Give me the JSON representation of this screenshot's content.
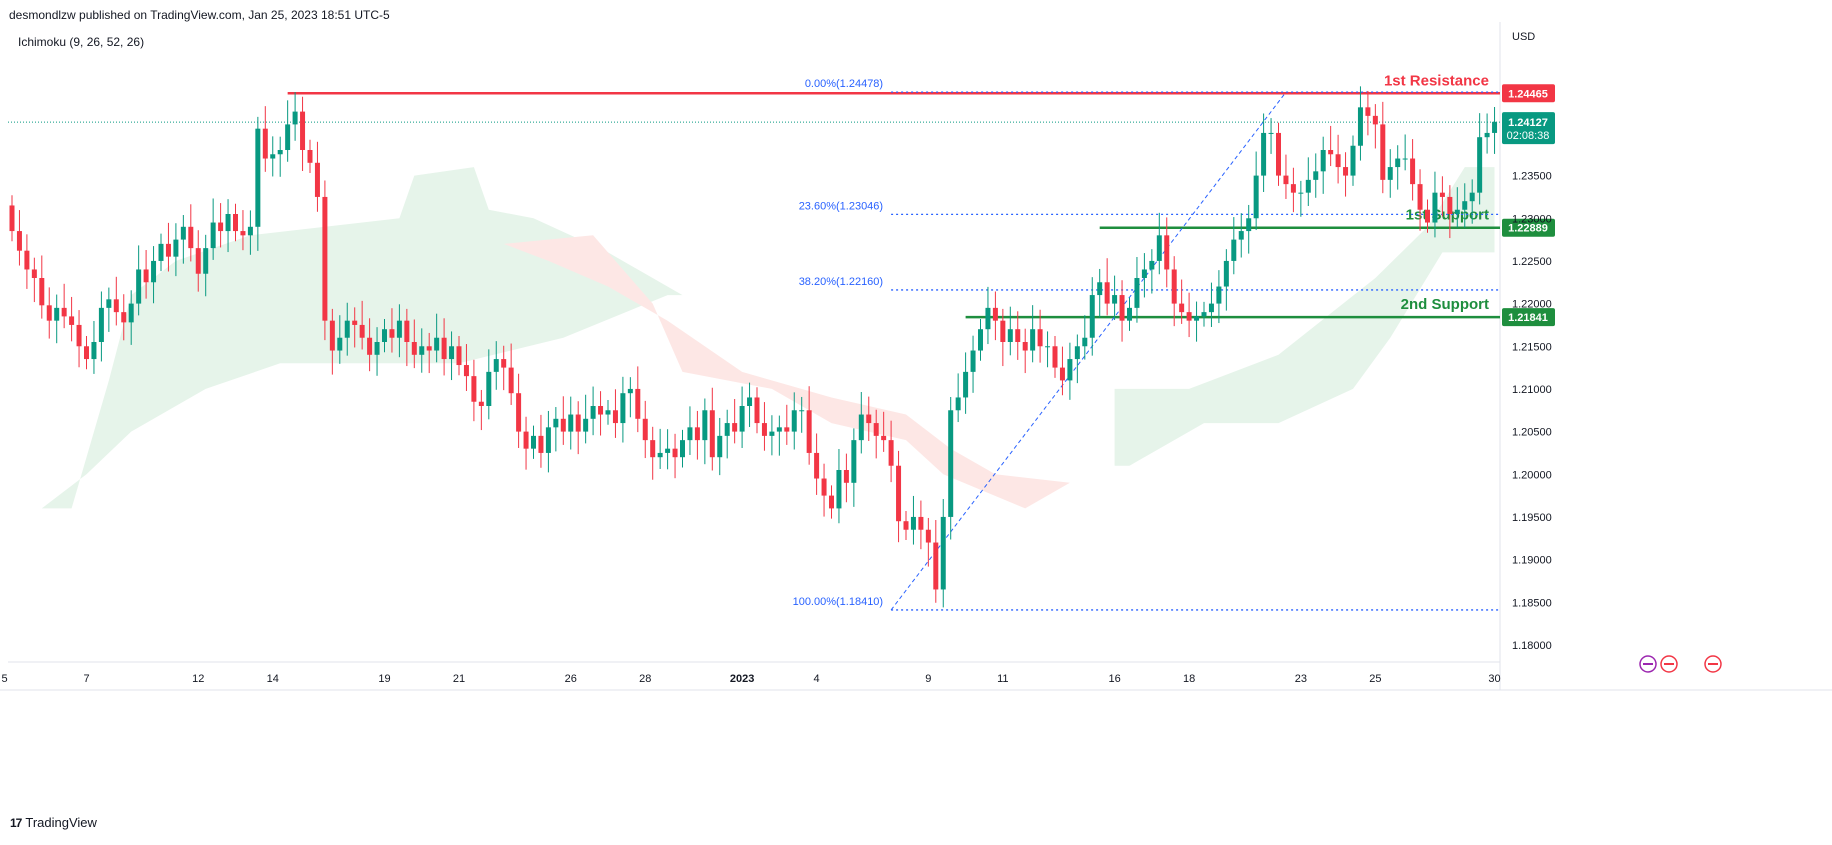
{
  "header": {
    "published_line": "desmondlzw published on TradingView.com, Jan 25, 2023 18:51 UTC-5",
    "indicator": "Ichimoku (9, 26, 52, 26)",
    "currency": "USD",
    "footer_brand": "TradingView"
  },
  "colors": {
    "up": "#089981",
    "down": "#f23645",
    "resistance": "#f23645",
    "support": "#1e8e3e",
    "fib": "#2962ff",
    "cloud_green": "#e6f4ea",
    "cloud_red": "#fde7e5",
    "axis_text": "#131722"
  },
  "chart_data": {
    "type": "candlestick",
    "symbol_currency": "USD",
    "ylim": [
      1.178,
      1.253
    ],
    "y_ticks": [
      "1.18000",
      "1.18500",
      "1.19000",
      "1.19500",
      "1.20000",
      "1.20500",
      "1.21000",
      "1.21500",
      "1.22000",
      "1.22500",
      "1.23000",
      "1.23500"
    ],
    "y_tick_values": [
      1.18,
      1.185,
      1.19,
      1.195,
      1.2,
      1.205,
      1.21,
      1.215,
      1.22,
      1.225,
      1.23,
      1.235
    ],
    "x_ticks": [
      "5",
      "7",
      "12",
      "14",
      "19",
      "21",
      "26",
      "28",
      "2023",
      "4",
      "9",
      "11",
      "16",
      "18",
      "23",
      "25",
      "30"
    ],
    "x_tick_bar_index": [
      -1,
      10,
      25,
      35,
      50,
      60,
      75,
      85,
      98,
      108,
      123,
      133,
      148,
      158,
      173,
      183,
      199
    ],
    "horizontal_levels": [
      {
        "label": "1st Resistance",
        "price_label": "1.24465",
        "value": 1.24465,
        "kind": "resistance",
        "start_bar": 37
      },
      {
        "label": "1st Support",
        "price_label": "1.22889",
        "value": 1.22889,
        "kind": "support",
        "start_bar": 146
      },
      {
        "label": "2nd Support",
        "price_label": "1.21841",
        "value": 1.21841,
        "kind": "support",
        "start_bar": 128
      }
    ],
    "current_price": {
      "value": 1.24127,
      "price_label": "1.24127",
      "countdown": "02:08:38"
    },
    "fibonacci": {
      "start_bar": 118,
      "levels": [
        {
          "label": "0.00%(1.24478)",
          "value": 1.24478
        },
        {
          "label": "23.60%(1.23046)",
          "value": 1.23046
        },
        {
          "label": "38.20%(1.22160)",
          "value": 1.2216
        },
        {
          "label": "100.00%(1.18410)",
          "value": 1.1841
        }
      ],
      "trend_from": {
        "bar": 118,
        "value": 1.1841
      },
      "trend_to": {
        "bar": 171,
        "value": 1.24478
      }
    },
    "candles_close": [
      1.2285,
      1.2262,
      1.224,
      1.223,
      1.2198,
      1.218,
      1.2195,
      1.2185,
      1.2175,
      1.215,
      1.2135,
      1.2155,
      1.2195,
      1.2205,
      1.219,
      1.2178,
      1.22,
      1.224,
      1.2225,
      1.225,
      1.227,
      1.2255,
      1.2275,
      1.229,
      1.2265,
      1.2235,
      1.2265,
      1.2295,
      1.2285,
      1.2305,
      1.2285,
      1.228,
      1.229,
      1.2405,
      1.237,
      1.2375,
      1.238,
      1.241,
      1.2425,
      1.238,
      1.2365,
      1.2325,
      1.218,
      1.2145,
      1.216,
      1.218,
      1.2175,
      1.216,
      1.214,
      1.2155,
      1.217,
      1.216,
      1.218,
      1.2155,
      1.214,
      1.215,
      1.2145,
      1.216,
      1.2135,
      1.215,
      1.2128,
      1.2115,
      1.2085,
      1.208,
      1.212,
      1.2135,
      1.2125,
      1.2095,
      1.205,
      1.203,
      1.2045,
      1.2025,
      1.2055,
      1.2065,
      1.205,
      1.207,
      1.205,
      1.2065,
      1.208,
      1.207,
      1.2075,
      1.206,
      1.2095,
      1.21,
      1.2065,
      1.204,
      1.202,
      1.2025,
      1.203,
      1.202,
      1.204,
      1.2055,
      1.204,
      1.2075,
      1.202,
      1.2045,
      1.206,
      1.205,
      1.208,
      1.209,
      1.206,
      1.2045,
      1.205,
      1.2055,
      1.205,
      1.2075,
      1.2075,
      1.2025,
      1.1995,
      1.1975,
      1.196,
      1.2005,
      1.199,
      1.204,
      1.207,
      1.206,
      1.2045,
      1.204,
      1.201,
      1.1945,
      1.1935,
      1.195,
      1.1935,
      1.192,
      1.1865,
      1.195,
      1.2075,
      1.209,
      1.212,
      1.2145,
      1.217,
      1.2195,
      1.218,
      1.2155,
      1.217,
      1.2155,
      1.2145,
      1.217,
      1.215,
      1.215,
      1.2125,
      1.211,
      1.2135,
      1.215,
      1.216,
      1.221,
      1.2225,
      1.22,
      1.221,
      1.218,
      1.2195,
      1.223,
      1.224,
      1.225,
      1.228,
      1.224,
      1.22,
      1.219,
      1.218,
      1.2185,
      1.219,
      1.22,
      1.222,
      1.225,
      1.2275,
      1.2285,
      1.23,
      1.235,
      1.24,
      1.24,
      1.235,
      1.234,
      1.233,
      1.233,
      1.2345,
      1.2355,
      1.238,
      1.2375,
      1.236,
      1.235,
      1.2385,
      1.243,
      1.242,
      1.241,
      1.2345,
      1.236,
      1.237,
      1.237,
      1.234,
      1.231,
      1.2295,
      1.233,
      1.2325,
      1.2305,
      1.231,
      1.232,
      1.233,
      1.2395,
      1.24,
      1.2413
    ]
  }
}
